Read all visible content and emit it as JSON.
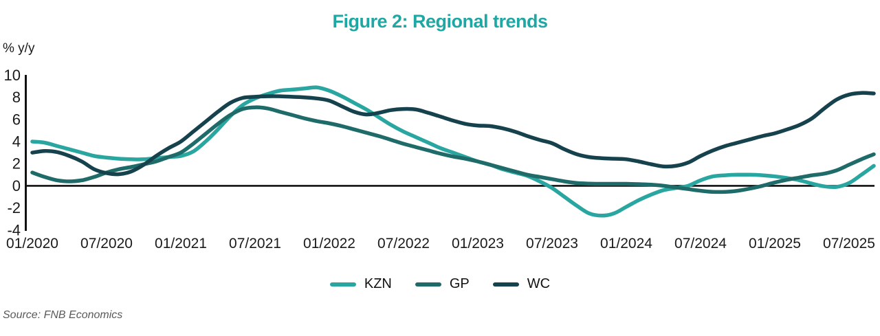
{
  "title": "Figure 2: Regional trends",
  "y_axis_unit": "% y/y",
  "source": "Source: FNB Economics",
  "colors": {
    "title": "#1FA8A3",
    "axis": "#111111",
    "axis_text": "#1a1a1a",
    "kzn": "#2AA6A1",
    "gp": "#1F6B69",
    "wc": "#16424D",
    "source_text": "#595959"
  },
  "legend": {
    "items": [
      {
        "label": "KZN",
        "color_key": "kzn"
      },
      {
        "label": "GP",
        "color_key": "gp"
      },
      {
        "label": "WC",
        "color_key": "wc"
      }
    ]
  },
  "chart_data": {
    "type": "line",
    "title": "Figure 2: Regional trends",
    "ylabel": "% y/y",
    "ylim": [
      -4,
      10
    ],
    "y_ticks": [
      10,
      8,
      6,
      4,
      2,
      0,
      -2,
      -4
    ],
    "x_tick_labels": [
      "01/2020",
      "07/2020",
      "01/2021",
      "07/2021",
      "01/2022",
      "07/2022",
      "01/2023",
      "07/2023",
      "01/2024",
      "07/2024",
      "01/2025",
      "07/2025"
    ],
    "x_frequency": "monthly",
    "x_start": "01/2020",
    "x_end": "09/2025",
    "grid": false,
    "legend_position": "bottom",
    "series": [
      {
        "name": "KZN",
        "color": "#2AA6A1",
        "values": [
          4.0,
          3.9,
          3.6,
          3.3,
          3.0,
          2.7,
          2.55,
          2.45,
          2.4,
          2.4,
          2.5,
          2.6,
          2.7,
          3.1,
          4.0,
          5.1,
          6.3,
          7.3,
          7.9,
          8.3,
          8.6,
          8.7,
          8.8,
          8.9,
          8.6,
          8.1,
          7.5,
          6.9,
          6.2,
          5.5,
          4.9,
          4.4,
          3.9,
          3.4,
          3.0,
          2.6,
          2.2,
          1.9,
          1.5,
          1.2,
          0.9,
          0.4,
          -0.2,
          -1.0,
          -1.8,
          -2.5,
          -2.7,
          -2.5,
          -1.9,
          -1.3,
          -0.8,
          -0.4,
          -0.2,
          0.0,
          0.5,
          0.85,
          0.95,
          1.0,
          1.0,
          0.95,
          0.85,
          0.7,
          0.5,
          0.2,
          -0.05,
          -0.1,
          0.25,
          1.0,
          1.8
        ]
      },
      {
        "name": "GP",
        "color": "#1F6B69",
        "values": [
          1.2,
          0.8,
          0.5,
          0.4,
          0.5,
          0.8,
          1.2,
          1.5,
          1.7,
          1.95,
          2.2,
          2.6,
          3.0,
          3.8,
          4.7,
          5.6,
          6.4,
          6.95,
          7.1,
          7.0,
          6.7,
          6.4,
          6.1,
          5.85,
          5.65,
          5.4,
          5.1,
          4.8,
          4.5,
          4.15,
          3.8,
          3.5,
          3.2,
          2.9,
          2.65,
          2.45,
          2.2,
          1.9,
          1.6,
          1.3,
          1.0,
          0.8,
          0.6,
          0.4,
          0.25,
          0.2,
          0.18,
          0.18,
          0.18,
          0.15,
          0.1,
          0.0,
          -0.15,
          -0.3,
          -0.45,
          -0.55,
          -0.55,
          -0.45,
          -0.25,
          0.0,
          0.3,
          0.55,
          0.75,
          0.95,
          1.1,
          1.4,
          1.9,
          2.4,
          2.85
        ]
      },
      {
        "name": "WC",
        "color": "#16424D",
        "values": [
          3.0,
          3.15,
          3.05,
          2.7,
          2.2,
          1.5,
          1.15,
          1.05,
          1.3,
          1.9,
          2.7,
          3.4,
          4.0,
          4.9,
          5.8,
          6.7,
          7.5,
          7.95,
          8.05,
          8.1,
          8.1,
          8.05,
          8.0,
          7.9,
          7.7,
          7.2,
          6.7,
          6.45,
          6.6,
          6.85,
          6.95,
          6.9,
          6.6,
          6.25,
          5.9,
          5.6,
          5.45,
          5.4,
          5.2,
          4.9,
          4.5,
          4.15,
          3.85,
          3.3,
          2.85,
          2.6,
          2.5,
          2.45,
          2.4,
          2.2,
          1.95,
          1.75,
          1.8,
          2.1,
          2.7,
          3.2,
          3.6,
          3.9,
          4.2,
          4.5,
          4.75,
          5.1,
          5.5,
          6.1,
          7.0,
          7.8,
          8.25,
          8.4,
          8.35
        ]
      }
    ]
  }
}
